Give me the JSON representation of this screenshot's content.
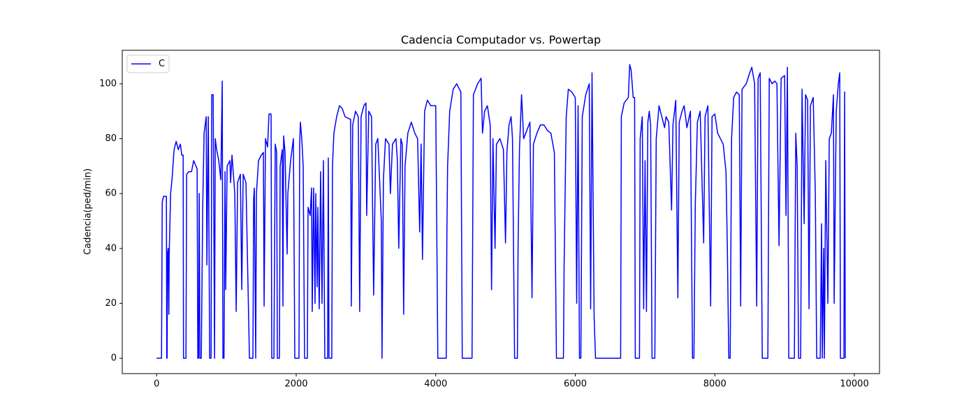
{
  "chart_data": {
    "type": "line",
    "title": "Cadencia Computador vs. Powertap",
    "y_label": "Cadencia(ped/min)",
    "x": [
      0,
      70,
      80,
      100,
      140,
      145,
      150,
      155,
      165,
      175,
      180,
      200,
      220,
      250,
      280,
      310,
      340,
      360,
      380,
      385,
      420,
      430,
      460,
      500,
      530,
      580,
      590,
      600,
      610,
      620,
      640,
      660,
      680,
      710,
      720,
      740,
      760,
      780,
      790,
      810,
      830,
      840,
      860,
      890,
      920,
      940,
      950,
      965,
      980,
      990,
      1010,
      1050,
      1060,
      1080,
      1120,
      1140,
      1160,
      1200,
      1220,
      1240,
      1280,
      1330,
      1380,
      1390,
      1400,
      1420,
      1430,
      1460,
      1500,
      1530,
      1540,
      1560,
      1590,
      1610,
      1640,
      1650,
      1680,
      1700,
      1720,
      1730,
      1760,
      1770,
      1800,
      1810,
      1820,
      1840,
      1870,
      1880,
      1920,
      1960,
      1980,
      2040,
      2050,
      2060,
      2080,
      2100,
      2120,
      2160,
      2170,
      2200,
      2220,
      2230,
      2250,
      2270,
      2280,
      2300,
      2310,
      2330,
      2350,
      2370,
      2390,
      2410,
      2450,
      2460,
      2470,
      2510,
      2520,
      2540,
      2580,
      2620,
      2660,
      2700,
      2780,
      2790,
      2810,
      2850,
      2890,
      2910,
      2930,
      2970,
      3000,
      3010,
      3040,
      3080,
      3110,
      3140,
      3170,
      3220,
      3230,
      3250,
      3280,
      3330,
      3350,
      3380,
      3430,
      3450,
      3470,
      3500,
      3520,
      3540,
      3560,
      3600,
      3650,
      3700,
      3740,
      3770,
      3790,
      3810,
      3840,
      3880,
      3930,
      3970,
      4000,
      4030,
      4150,
      4160,
      4170,
      4200,
      4250,
      4300,
      4360,
      4380,
      4520,
      4540,
      4600,
      4650,
      4670,
      4700,
      4740,
      4780,
      4800,
      4820,
      4850,
      4870,
      4920,
      4970,
      5000,
      5020,
      5050,
      5080,
      5100,
      5130,
      5170,
      5180,
      5200,
      5230,
      5260,
      5290,
      5350,
      5380,
      5400,
      5450,
      5500,
      5550,
      5600,
      5650,
      5700,
      5730,
      5830,
      5840,
      5870,
      5900,
      5950,
      6000,
      6020,
      6040,
      6060,
      6080,
      6100,
      6150,
      6200,
      6220,
      6240,
      6270,
      6290,
      6650,
      6660,
      6700,
      6760,
      6780,
      6800,
      6830,
      6850,
      6860,
      6920,
      6930,
      6960,
      6980,
      7000,
      7020,
      7040,
      7060,
      7080,
      7100,
      7140,
      7160,
      7200,
      7240,
      7280,
      7300,
      7340,
      7380,
      7400,
      7440,
      7470,
      7490,
      7530,
      7560,
      7600,
      7650,
      7680,
      7700,
      7720,
      7750,
      7790,
      7840,
      7860,
      7900,
      7940,
      7960,
      8000,
      8040,
      8080,
      8120,
      8160,
      8180,
      8200,
      8220,
      8240,
      8270,
      8310,
      8350,
      8370,
      8390,
      8450,
      8500,
      8530,
      8570,
      8600,
      8620,
      8650,
      8680,
      8760,
      8780,
      8820,
      8860,
      8890,
      8920,
      8950,
      9000,
      9020,
      9040,
      9060,
      9140,
      9160,
      9180,
      9200,
      9230,
      9250,
      9280,
      9300,
      9330,
      9350,
      9370,
      9410,
      9440,
      9460,
      9510,
      9530,
      9540,
      9560,
      9570,
      9590,
      9620,
      9640,
      9670,
      9700,
      9710,
      9740,
      9770,
      9790,
      9800,
      9850,
      9860,
      9870
    ],
    "series": [
      {
        "name": "C",
        "color": "#0000ff",
        "values": [
          0,
          0,
          57,
          59,
          59,
          0,
          0,
          38,
          40,
          16,
          38,
          60,
          65,
          76,
          79,
          76,
          78,
          74,
          74,
          0,
          0,
          67,
          68,
          68,
          72,
          69,
          0,
          0,
          60,
          0,
          0,
          55,
          82,
          88,
          34,
          88,
          0,
          0,
          96,
          96,
          0,
          80,
          76,
          72,
          65,
          101,
          0,
          0,
          68,
          25,
          70,
          72,
          64,
          74,
          60,
          17,
          64,
          67,
          25,
          67,
          64,
          0,
          0,
          58,
          62,
          0,
          60,
          72,
          74,
          75,
          19,
          80,
          77,
          89,
          89,
          0,
          0,
          78,
          75,
          0,
          0,
          70,
          76,
          19,
          81,
          75,
          38,
          60,
          72,
          80,
          0,
          0,
          78,
          86,
          80,
          70,
          0,
          0,
          55,
          52,
          62,
          17,
          62,
          20,
          60,
          26,
          55,
          18,
          68,
          20,
          72,
          0,
          0,
          73,
          0,
          0,
          70,
          82,
          88,
          92,
          91,
          88,
          87,
          19,
          85,
          90,
          88,
          17,
          88,
          92,
          93,
          52,
          90,
          88,
          23,
          78,
          80,
          50,
          0,
          65,
          80,
          78,
          60,
          78,
          80,
          72,
          40,
          80,
          78,
          16,
          70,
          82,
          86,
          82,
          80,
          46,
          78,
          36,
          90,
          94,
          92,
          92,
          92,
          0,
          0,
          46,
          70,
          90,
          98,
          100,
          97,
          0,
          0,
          96,
          100,
          102,
          82,
          90,
          92,
          85,
          25,
          80,
          40,
          78,
          80,
          76,
          42,
          75,
          85,
          88,
          80,
          0,
          0,
          41,
          76,
          96,
          80,
          82,
          86,
          22,
          78,
          82,
          85,
          85,
          83,
          82,
          75,
          0,
          0,
          34,
          88,
          98,
          97,
          95,
          20,
          92,
          0,
          0,
          88,
          96,
          100,
          18,
          104,
          15,
          0,
          0,
          88,
          93,
          95,
          107,
          105,
          95,
          95,
          0,
          0,
          80,
          88,
          18,
          72,
          17,
          86,
          90,
          85,
          0,
          0,
          80,
          92,
          88,
          84,
          88,
          86,
          54,
          85,
          94,
          22,
          86,
          90,
          92,
          84,
          90,
          0,
          0,
          56,
          86,
          90,
          42,
          88,
          92,
          19,
          88,
          89,
          82,
          80,
          78,
          68,
          39,
          0,
          0,
          80,
          95,
          97,
          96,
          19,
          98,
          100,
          104,
          106,
          100,
          19,
          102,
          104,
          0,
          0,
          102,
          100,
          101,
          100,
          41,
          102,
          103,
          52,
          106,
          0,
          0,
          82,
          70,
          0,
          0,
          98,
          49,
          96,
          94,
          18,
          92,
          95,
          60,
          0,
          0,
          49,
          0,
          40,
          0,
          72,
          20,
          80,
          82,
          96,
          20,
          90,
          100,
          104,
          0,
          0,
          97,
          0
        ]
      }
    ],
    "xlim": [
      -493,
      10360
    ],
    "ylim": [
      -5.6,
      112.2
    ],
    "xticks": [
      0,
      2000,
      4000,
      6000,
      8000,
      10000
    ],
    "yticks": [
      0,
      20,
      40,
      60,
      80,
      100
    ],
    "legend": "upper left"
  }
}
